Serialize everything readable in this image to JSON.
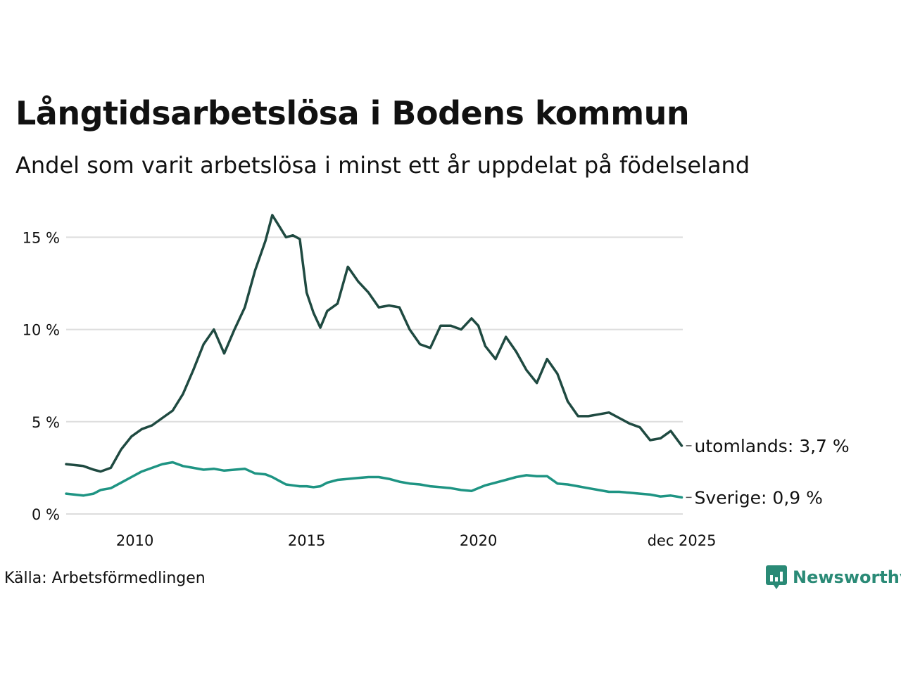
{
  "header": {
    "title": "Långtidsarbetslösa i Bodens kommun",
    "subtitle": "Andel som varit arbetslösa i minst ett år uppdelat på födelseland"
  },
  "footer": {
    "source": "Källa: Arbetsförmedlingen",
    "brand": "Newsworthy"
  },
  "chart_data": {
    "type": "line",
    "title": "Långtidsarbetslösa i Bodens kommun",
    "subtitle": "Andel som varit arbetslösa i minst ett år uppdelat på födelseland",
    "xlabel": "",
    "ylabel": "",
    "xlim": [
      2008.0,
      2025.95
    ],
    "ylim": [
      0,
      16.5
    ],
    "grid": true,
    "y_ticks": [
      {
        "value": 0,
        "label": "0 %"
      },
      {
        "value": 5,
        "label": "5 %"
      },
      {
        "value": 10,
        "label": "10 %"
      },
      {
        "value": 15,
        "label": "15 %"
      }
    ],
    "x_ticks": [
      {
        "value": 2010,
        "label": "2010"
      },
      {
        "value": 2015,
        "label": "2015"
      },
      {
        "value": 2020,
        "label": "2020"
      },
      {
        "value": 2025.92,
        "label": "dec 2025"
      }
    ],
    "series": [
      {
        "name": "utomlands",
        "end_label": "utomlands: 3,7 %",
        "color": "#1f4a41",
        "x": [
          2008.0,
          2008.5,
          2008.8,
          2009.0,
          2009.3,
          2009.6,
          2009.9,
          2010.2,
          2010.5,
          2010.8,
          2011.1,
          2011.4,
          2011.7,
          2012.0,
          2012.3,
          2012.6,
          2012.9,
          2013.2,
          2013.5,
          2013.8,
          2014.0,
          2014.2,
          2014.4,
          2014.6,
          2014.8,
          2015.0,
          2015.2,
          2015.4,
          2015.6,
          2015.9,
          2016.2,
          2016.5,
          2016.8,
          2017.1,
          2017.4,
          2017.7,
          2018.0,
          2018.3,
          2018.6,
          2018.9,
          2019.2,
          2019.5,
          2019.8,
          2020.0,
          2020.2,
          2020.5,
          2020.8,
          2021.1,
          2021.4,
          2021.7,
          2022.0,
          2022.3,
          2022.6,
          2022.9,
          2023.2,
          2023.5,
          2023.8,
          2024.1,
          2024.4,
          2024.7,
          2025.0,
          2025.3,
          2025.6,
          2025.92
        ],
        "values": [
          2.7,
          2.6,
          2.4,
          2.3,
          2.5,
          3.5,
          4.2,
          4.6,
          4.8,
          5.2,
          5.6,
          6.5,
          7.8,
          9.2,
          10.0,
          8.7,
          10.0,
          11.2,
          13.2,
          14.8,
          16.2,
          15.6,
          15.0,
          15.1,
          14.9,
          12.0,
          10.9,
          10.1,
          11.0,
          11.4,
          13.4,
          12.6,
          12.0,
          11.2,
          11.3,
          11.2,
          10.0,
          9.2,
          9.0,
          10.2,
          10.2,
          10.0,
          10.6,
          10.2,
          9.1,
          8.4,
          9.6,
          8.8,
          7.8,
          7.1,
          8.4,
          7.6,
          6.1,
          5.3,
          5.3,
          5.4,
          5.5,
          5.2,
          4.9,
          4.7,
          4.0,
          4.1,
          4.5,
          3.7
        ]
      },
      {
        "name": "Sverige",
        "end_label": "Sverige: 0,9 %",
        "color": "#1e9483",
        "x": [
          2008.0,
          2008.5,
          2008.8,
          2009.0,
          2009.3,
          2009.6,
          2009.9,
          2010.2,
          2010.5,
          2010.8,
          2011.1,
          2011.4,
          2011.7,
          2012.0,
          2012.3,
          2012.6,
          2012.9,
          2013.2,
          2013.5,
          2013.8,
          2014.0,
          2014.2,
          2014.4,
          2014.6,
          2014.8,
          2015.0,
          2015.2,
          2015.4,
          2015.6,
          2015.9,
          2016.2,
          2016.5,
          2016.8,
          2017.1,
          2017.4,
          2017.7,
          2018.0,
          2018.3,
          2018.6,
          2018.9,
          2019.2,
          2019.5,
          2019.8,
          2020.0,
          2020.2,
          2020.5,
          2020.8,
          2021.1,
          2021.4,
          2021.7,
          2022.0,
          2022.3,
          2022.6,
          2022.9,
          2023.2,
          2023.5,
          2023.8,
          2024.1,
          2024.4,
          2024.7,
          2025.0,
          2025.3,
          2025.6,
          2025.92
        ],
        "values": [
          1.1,
          1.0,
          1.1,
          1.3,
          1.4,
          1.7,
          2.0,
          2.3,
          2.5,
          2.7,
          2.8,
          2.6,
          2.5,
          2.4,
          2.45,
          2.35,
          2.4,
          2.45,
          2.2,
          2.15,
          2.0,
          1.8,
          1.6,
          1.55,
          1.5,
          1.5,
          1.45,
          1.5,
          1.7,
          1.85,
          1.9,
          1.95,
          2.0,
          2.0,
          1.9,
          1.75,
          1.65,
          1.6,
          1.5,
          1.45,
          1.4,
          1.3,
          1.25,
          1.4,
          1.55,
          1.7,
          1.85,
          2.0,
          2.1,
          2.05,
          2.05,
          1.65,
          1.6,
          1.5,
          1.4,
          1.3,
          1.2,
          1.2,
          1.15,
          1.1,
          1.05,
          0.95,
          1.0,
          0.9
        ]
      }
    ]
  }
}
